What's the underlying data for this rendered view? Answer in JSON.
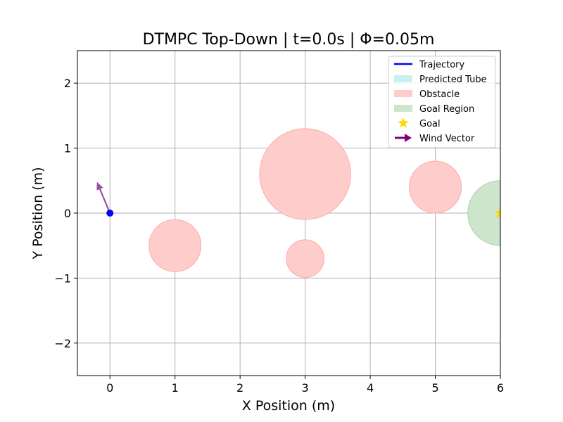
{
  "chart_data": {
    "type": "scatter",
    "title": "DTMPC Top-Down | t=0.0s | Φ=0.05m",
    "xlabel": "X Position (m)",
    "ylabel": "Y Position (m)",
    "xlim": [
      -0.5,
      6.0
    ],
    "ylim": [
      -2.5,
      2.5
    ],
    "xticks": [
      0,
      1,
      2,
      3,
      4,
      5,
      6
    ],
    "xtick_labels": [
      "0",
      "1",
      "2",
      "3",
      "4",
      "5",
      "6"
    ],
    "yticks": [
      -2,
      -1,
      0,
      1,
      2
    ],
    "ytick_labels": [
      "−2",
      "−1",
      "0",
      "1",
      "2"
    ],
    "grid": true,
    "legend_position": "top-right",
    "legend": [
      {
        "label": "Trajectory",
        "kind": "line",
        "color": "#0000ff"
      },
      {
        "label": "Predicted Tube",
        "kind": "patch",
        "color": "#c8f0f0"
      },
      {
        "label": "Obstacle",
        "kind": "patch",
        "color": "#ffcccc"
      },
      {
        "label": "Goal Region",
        "kind": "patch",
        "color": "#cce5cc"
      },
      {
        "label": "Goal",
        "kind": "star",
        "color": "#ffd700"
      },
      {
        "label": "Wind Vector",
        "kind": "arrow",
        "color": "#800080"
      }
    ],
    "obstacles": [
      {
        "x": 1.0,
        "y": -0.5,
        "r": 0.4
      },
      {
        "x": 3.0,
        "y": 0.6,
        "r": 0.7
      },
      {
        "x": 3.0,
        "y": -0.7,
        "r": 0.29
      },
      {
        "x": 5.0,
        "y": 0.4,
        "r": 0.4
      }
    ],
    "goal_region": {
      "x": 6.0,
      "y": 0.0,
      "r": 0.5
    },
    "goal": {
      "x": 6.0,
      "y": 0.0
    },
    "robot": {
      "x": 0.0,
      "y": 0.0
    },
    "wind_vector": {
      "x": 0.0,
      "y": 0.0,
      "dx": -0.2,
      "dy": 0.48
    },
    "colors": {
      "obstacle": "#ffcccc",
      "obstacle_edge": "#ffaaaa",
      "goal_region": "#cce5cc",
      "goal_region_edge": "#a8d0a8",
      "goal": "#ffd700",
      "robot": "#0000ff",
      "wind": "#9b4fa6",
      "grid": "#b0b0b0"
    }
  }
}
